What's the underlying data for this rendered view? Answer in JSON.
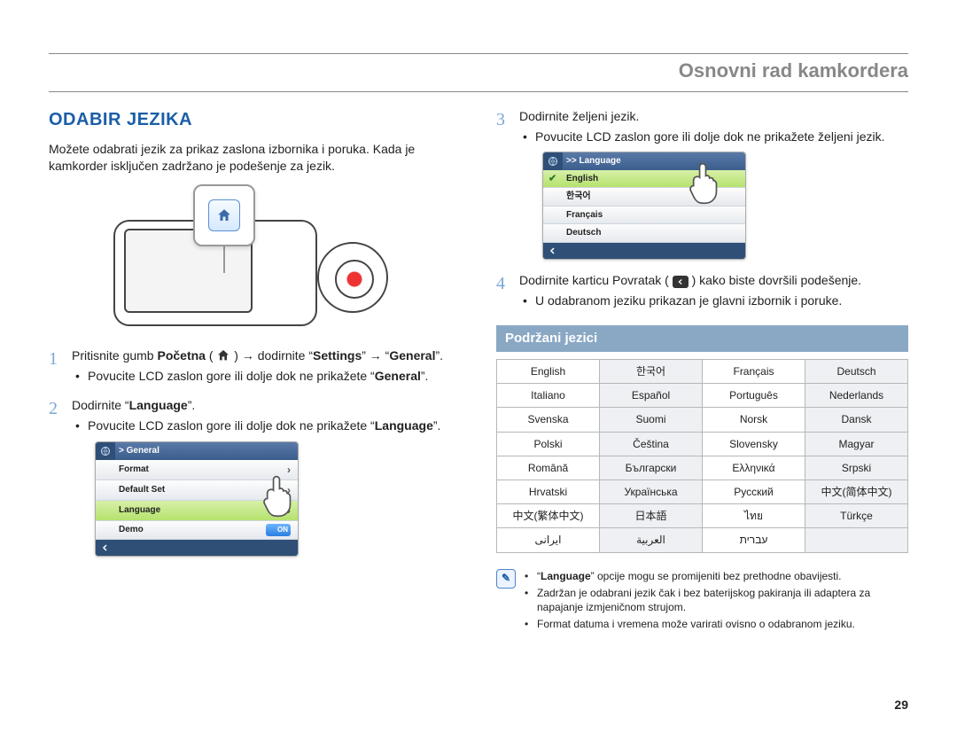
{
  "chapter": "Osnovni rad kamkordera",
  "section_title": "ODABIR JEZIKA",
  "intro": "Možete odabrati jezik za prikaz zaslona izbornika i poruka. Kada je kamkorder isključen zadržano je podešenje za jezik.",
  "left_steps": {
    "s1": {
      "pre": "Pritisnite gumb ",
      "home": "Početna",
      "mid": " ( ",
      "after_icon": " ) → dodirnite “",
      "settings": "Settings",
      "arrow2": "” → “",
      "general": "General",
      "end": "”.",
      "sub1_pre": "Povucite LCD zaslon gore ili dolje dok ne prikažete “",
      "sub1_bold": "General",
      "sub1_end": "”."
    },
    "s2": {
      "text_pre": "Dodirnite “",
      "text_bold": "Language",
      "text_end": "”.",
      "sub_pre": "Povucite LCD zaslon gore ili dolje dok ne prikažete “",
      "sub_bold": "Language",
      "sub_end": "”."
    }
  },
  "mini_general": {
    "title": "> General",
    "rows": [
      "Format",
      "Default Set",
      "Language",
      "Demo"
    ],
    "toggle_label": "ON",
    "selected_index": 2
  },
  "right_steps": {
    "s3": {
      "text": "Dodirnite željeni jezik.",
      "sub": "Povucite LCD zaslon gore ili dolje dok ne prikažete željeni jezik."
    },
    "s4": {
      "pre": "Dodirnite karticu Povratak ( ",
      "post": " ) kako biste dovršili podešenje.",
      "sub": "U odabranom jeziku prikazan je glavni izbornik i poruke."
    }
  },
  "mini_lang": {
    "title": ">> Language",
    "rows": [
      "English",
      "한국어",
      "Français",
      "Deutsch"
    ],
    "selected_index": 0
  },
  "supported_heading": "Podržani jezici",
  "lang_table": [
    [
      "English",
      "한국어",
      "Français",
      "Deutsch"
    ],
    [
      "Italiano",
      "Español",
      "Português",
      "Nederlands"
    ],
    [
      "Svenska",
      "Suomi",
      "Norsk",
      "Dansk"
    ],
    [
      "Polski",
      "Čeština",
      "Slovensky",
      "Magyar"
    ],
    [
      "Română",
      "Български",
      "Ελληνικά",
      "Srpski"
    ],
    [
      "Hrvatski",
      "Українська",
      "Русский",
      "中文(简体中文)"
    ],
    [
      "中文(繁体中文)",
      "日本語",
      "ไทย",
      "Türkçe"
    ],
    [
      "ایرانی",
      "العربیة",
      "עברית",
      ""
    ]
  ],
  "notes": {
    "n1_pre": "“",
    "n1_bold": "Language",
    "n1_post": "” opcije mogu se promijeniti bez prethodne obavijesti.",
    "n2": "Zadržan je odabrani jezik čak i bez baterijskog pakiranja ili adaptera za napajanje izmjeničnom strujom.",
    "n3": "Format datuma i vremena može varirati ovisno o odabranom jeziku."
  },
  "page_number": "29",
  "colors": {
    "heading": "#1b5ea8",
    "step_num": "#7aa6d6",
    "subhead_bg": "#8aa8c4",
    "table_shade": "#eef0f3"
  }
}
